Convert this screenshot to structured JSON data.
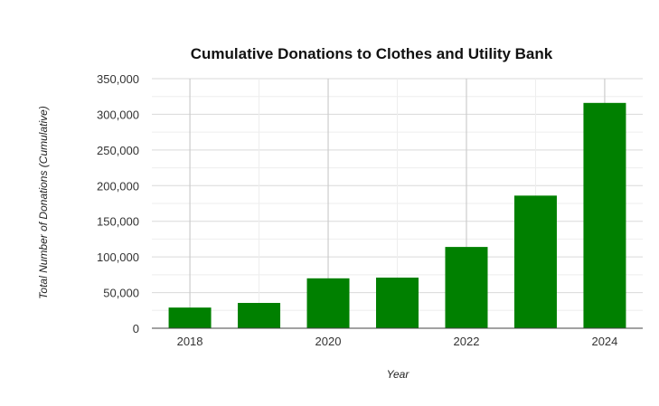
{
  "chart_data": {
    "type": "bar",
    "title": "Cumulative Donations to Clothes and Utility Bank",
    "xlabel": "Year",
    "ylabel": "Total Number of Donations (Cumulative)",
    "x": [
      2018,
      2019,
      2020,
      2021,
      2022,
      2023,
      2024
    ],
    "x_tick_labels": [
      "2018",
      "2020",
      "2022",
      "2024"
    ],
    "x_tick_values": [
      2018,
      2020,
      2022,
      2024
    ],
    "values": [
      29000,
      35500,
      70000,
      71000,
      114000,
      186000,
      316000
    ],
    "ylim": [
      0,
      350000
    ],
    "y_tick_labels": [
      "0",
      "50,000",
      "100,000",
      "150,000",
      "200,000",
      "250,000",
      "300,000",
      "350,000"
    ],
    "y_tick_values": [
      0,
      50000,
      100000,
      150000,
      200000,
      250000,
      300000,
      350000
    ],
    "bar_color": "#008000",
    "grid": true,
    "legend": "none"
  }
}
